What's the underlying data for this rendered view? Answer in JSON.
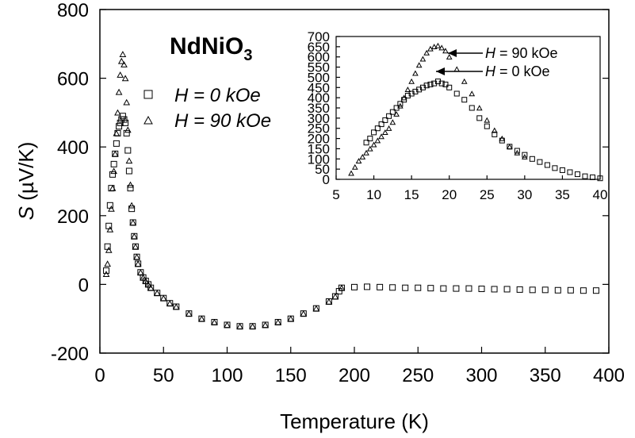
{
  "chart_data": [
    {
      "type": "scatter",
      "title": "NdNiO",
      "title_subscript": "3",
      "xlabel": "Temperature (K)",
      "ylabel_italic": "S",
      "ylabel_rest": " (µV/K)",
      "xlim": [
        0,
        400
      ],
      "ylim": [
        -200,
        800
      ],
      "xticks": [
        "0",
        "50",
        "100",
        "150",
        "200",
        "250",
        "300",
        "350",
        "400"
      ],
      "yticks": [
        "-200",
        "0",
        "200",
        "400",
        "600",
        "800"
      ],
      "grid": false,
      "legend_position": "upper-left",
      "series": [
        {
          "name": "H = 0 kOe",
          "marker": "square",
          "x": [
            5,
            6,
            7,
            8,
            9,
            10,
            11,
            12,
            13,
            14,
            15,
            16,
            17,
            18,
            19,
            20,
            21,
            22,
            23,
            24,
            25,
            26,
            27,
            28,
            29,
            30,
            32,
            34,
            36,
            38,
            40,
            45,
            50,
            55,
            60,
            70,
            80,
            90,
            100,
            110,
            120,
            130,
            140,
            150,
            160,
            170,
            180,
            185,
            188,
            190,
            200,
            210,
            220,
            230,
            240,
            250,
            260,
            270,
            280,
            290,
            300,
            310,
            320,
            330,
            340,
            350,
            360,
            370,
            380,
            390
          ],
          "y": [
            40,
            110,
            170,
            230,
            280,
            320,
            350,
            380,
            410,
            440,
            460,
            470,
            480,
            490,
            480,
            470,
            440,
            390,
            330,
            280,
            220,
            180,
            140,
            110,
            80,
            60,
            35,
            20,
            10,
            0,
            -10,
            -25,
            -40,
            -55,
            -65,
            -85,
            -100,
            -110,
            -118,
            -122,
            -122,
            -118,
            -110,
            -100,
            -85,
            -70,
            -50,
            -35,
            -20,
            -10,
            -8,
            -7,
            -8,
            -9,
            -10,
            -10,
            -11,
            -12,
            -12,
            -12,
            -13,
            -14,
            -14,
            -15,
            -16,
            -16,
            -17,
            -17,
            -18,
            -18
          ]
        },
        {
          "name": "H = 90 kOe",
          "marker": "triangle",
          "x": [
            5,
            6,
            7,
            8,
            9,
            10,
            11,
            12,
            13,
            14,
            15,
            16,
            17,
            18,
            19,
            20,
            21,
            22,
            23,
            24,
            25,
            26,
            27,
            28,
            29,
            30,
            32,
            34,
            36,
            38,
            40,
            45,
            50,
            55,
            60,
            70,
            80,
            90,
            100,
            110,
            120,
            130,
            140,
            150,
            160,
            170,
            180,
            185,
            190
          ],
          "y": [
            30,
            60,
            100,
            160,
            220,
            280,
            330,
            380,
            440,
            500,
            560,
            610,
            650,
            670,
            640,
            600,
            530,
            450,
            360,
            290,
            230,
            180,
            140,
            110,
            80,
            60,
            35,
            20,
            10,
            0,
            -10,
            -25,
            -40,
            -55,
            -65,
            -85,
            -100,
            -110,
            -118,
            -122,
            -122,
            -118,
            -110,
            -100,
            -85,
            -70,
            -50,
            -35,
            -10
          ]
        }
      ]
    },
    {
      "type": "scatter",
      "title": "",
      "xlim": [
        5,
        40
      ],
      "ylim": [
        0,
        700
      ],
      "xticks": [
        "5",
        "10",
        "15",
        "20",
        "25",
        "30",
        "35",
        "40"
      ],
      "yticks": [
        "0",
        "50",
        "100",
        "150",
        "200",
        "250",
        "300",
        "350",
        "400",
        "450",
        "500",
        "550",
        "600",
        "650",
        "700"
      ],
      "grid": false,
      "annotations": [
        {
          "italic": "H",
          "rest": " = 90 kOe"
        },
        {
          "italic": "H",
          "rest": " = 0 kOe"
        }
      ],
      "series": [
        {
          "name": "H = 0 kOe",
          "marker": "square",
          "x": [
            9,
            9.5,
            10,
            10.5,
            11,
            11.5,
            12,
            12.5,
            13,
            13.5,
            14,
            14.5,
            15,
            15.5,
            16,
            16.5,
            17,
            17.5,
            18,
            18.5,
            19,
            19.5,
            20,
            21,
            22,
            23,
            24,
            25,
            26,
            27,
            28,
            29,
            30,
            31,
            32,
            33,
            34,
            35,
            36,
            37,
            38,
            39,
            40
          ],
          "y": [
            180,
            200,
            230,
            250,
            270,
            290,
            310,
            330,
            350,
            370,
            390,
            410,
            420,
            430,
            440,
            450,
            460,
            465,
            470,
            480,
            470,
            465,
            450,
            420,
            390,
            350,
            300,
            260,
            220,
            190,
            160,
            140,
            120,
            100,
            85,
            70,
            55,
            45,
            35,
            25,
            15,
            10,
            5
          ]
        },
        {
          "name": "H = 90 kOe",
          "marker": "triangle",
          "x": [
            7,
            7.5,
            8,
            8.5,
            9,
            9.5,
            10,
            10.5,
            11,
            11.5,
            12,
            12.5,
            13,
            13.5,
            14,
            14.5,
            15,
            15.5,
            16,
            16.5,
            17,
            17.5,
            18,
            18.5,
            19,
            19.5,
            20,
            21,
            22,
            23,
            24,
            25,
            26,
            27,
            28,
            29,
            30
          ],
          "y": [
            30,
            60,
            90,
            110,
            130,
            150,
            170,
            190,
            210,
            230,
            250,
            280,
            320,
            360,
            400,
            440,
            480,
            520,
            560,
            590,
            620,
            640,
            650,
            655,
            645,
            630,
            600,
            540,
            480,
            420,
            350,
            290,
            240,
            200,
            160,
            130,
            110
          ]
        }
      ]
    }
  ]
}
